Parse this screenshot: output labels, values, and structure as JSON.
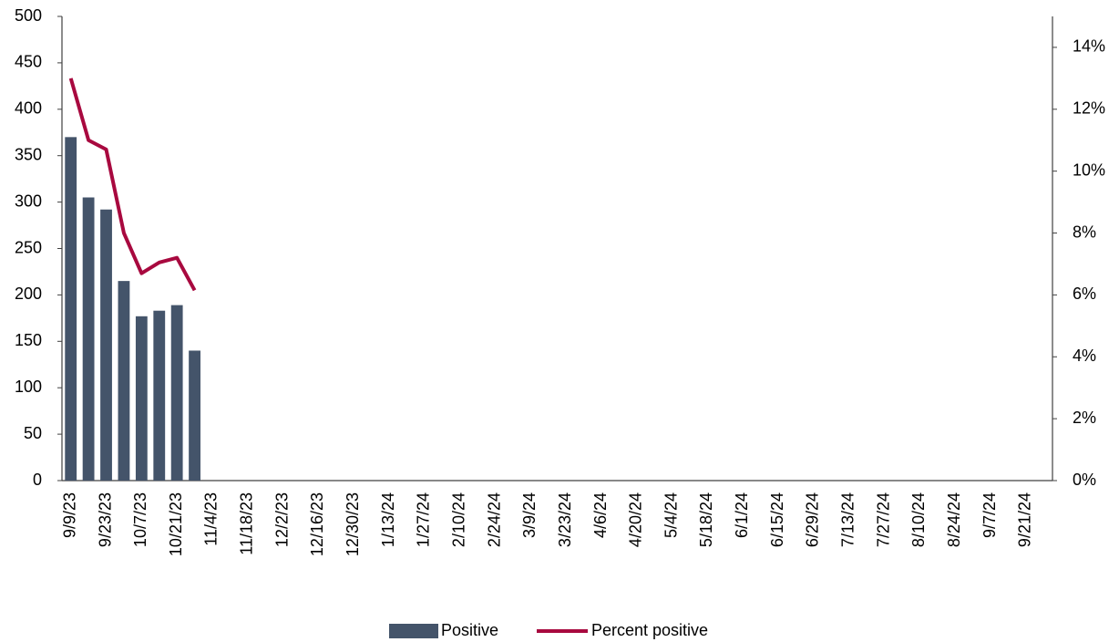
{
  "chart_data": {
    "type": "bar-line",
    "categories": [
      "9/9/23",
      null,
      "9/23/23",
      null,
      "10/7/23",
      null,
      "10/21/23",
      null,
      "11/4/23",
      null,
      "11/18/23",
      null,
      "12/2/23",
      null,
      "12/16/23",
      null,
      "12/30/23",
      null,
      "1/13/24",
      null,
      "1/27/24",
      null,
      "2/10/24",
      null,
      "2/24/24",
      null,
      "3/9/24",
      null,
      "3/23/24",
      null,
      "4/6/24",
      null,
      "4/20/24",
      null,
      "5/4/24",
      null,
      "5/18/24",
      null,
      "6/1/24",
      null,
      "6/15/24",
      null,
      "6/29/24",
      null,
      "7/13/24",
      null,
      "7/27/24",
      null,
      "8/10/24",
      null,
      "8/24/24",
      null,
      "9/7/24",
      null,
      "9/21/24",
      null
    ],
    "series": [
      {
        "name": "Positive",
        "type": "bar",
        "color": "#44546a",
        "values": [
          370,
          305,
          292,
          215,
          177,
          183,
          189,
          140,
          null,
          null,
          null,
          null,
          null,
          null,
          null,
          null,
          null,
          null,
          null,
          null,
          null,
          null,
          null,
          null,
          null,
          null,
          null,
          null,
          null,
          null,
          null,
          null,
          null,
          null,
          null,
          null,
          null,
          null,
          null,
          null,
          null,
          null,
          null,
          null,
          null,
          null,
          null,
          null,
          null,
          null,
          null,
          null,
          null,
          null,
          null,
          null
        ]
      },
      {
        "name": "Percent positive",
        "type": "line",
        "axis": "y2",
        "color": "#a8093f",
        "values": [
          13.0,
          11.0,
          10.7,
          8.0,
          6.7,
          7.05,
          7.2,
          6.15,
          null,
          null,
          null,
          null,
          null,
          null,
          null,
          null,
          null,
          null,
          null,
          null,
          null,
          null,
          null,
          null,
          null,
          null,
          null,
          null,
          null,
          null,
          null,
          null,
          null,
          null,
          null,
          null,
          null,
          null,
          null,
          null,
          null,
          null,
          null,
          null,
          null,
          null,
          null,
          null,
          null,
          null,
          null,
          null,
          null,
          null,
          null,
          null
        ]
      }
    ],
    "ylim": [
      0,
      500
    ],
    "yticks": [
      0,
      50,
      100,
      150,
      200,
      250,
      300,
      350,
      400,
      450,
      500
    ],
    "y2lim": [
      0,
      15
    ],
    "y2ticks": [
      {
        "value": 0,
        "label": "0%"
      },
      {
        "value": 2,
        "label": "2%"
      },
      {
        "value": 4,
        "label": "4%"
      },
      {
        "value": 6,
        "label": "6%"
      },
      {
        "value": 8,
        "label": "8%"
      },
      {
        "value": 10,
        "label": "10%"
      },
      {
        "value": 12,
        "label": "12%"
      },
      {
        "value": 14,
        "label": "14%"
      }
    ],
    "grid": false,
    "legend": "bottom"
  }
}
